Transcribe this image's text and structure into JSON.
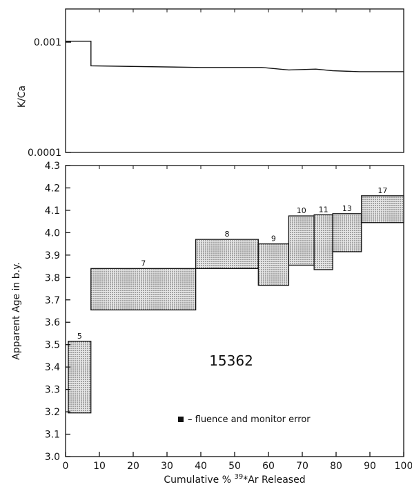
{
  "chart_data": [
    {
      "type": "line",
      "ylabel": "K/Ca",
      "yscale": "log",
      "ylim": [
        0.0001,
        0.002
      ],
      "xlim": [
        0,
        100
      ],
      "y_tick_labels": [
        "0.001",
        "0.0001"
      ],
      "y_ticks": [
        0.001,
        0.0001
      ],
      "step_x": [
        0,
        7.5,
        7.5,
        40,
        58,
        66,
        74,
        79,
        87,
        100
      ],
      "step_y": [
        0.00102,
        0.00102,
        0.00061,
        0.00059,
        0.00059,
        0.00056,
        0.00057,
        0.00055,
        0.00054,
        0.00054
      ]
    },
    {
      "type": "bar",
      "xlabel_prefix": "Cumulative  %  ",
      "xlabel_sup": "39",
      "xlabel_suffix": "*Ar Released",
      "ylabel": "Apparent  Age  in  b.y.",
      "xlim": [
        0,
        100
      ],
      "ylim": [
        3.0,
        4.3
      ],
      "x_ticks": [
        0,
        10,
        20,
        30,
        40,
        50,
        60,
        70,
        80,
        90,
        100
      ],
      "x_tick_labels": [
        "0",
        "10",
        "20",
        "30",
        "40",
        "50",
        "60",
        "70",
        "80",
        "90",
        "100"
      ],
      "y_ticks": [
        3.0,
        3.1,
        3.2,
        3.3,
        3.4,
        3.5,
        3.6,
        3.7,
        3.8,
        3.9,
        4.0,
        4.1,
        4.2,
        4.3
      ],
      "y_tick_labels": [
        "3.0",
        "3.1",
        "3.2",
        "3.3",
        "3.4",
        "3.5",
        "3.6",
        "3.7",
        "3.8",
        "3.9",
        "4.0",
        "4.1",
        "4.2",
        "4.3"
      ],
      "steps": [
        {
          "label": "5",
          "x0": 0.8,
          "x1": 7.5,
          "y0": 3.195,
          "y1": 3.515
        },
        {
          "label": "7",
          "x0": 7.5,
          "x1": 38.5,
          "y0": 3.655,
          "y1": 3.84
        },
        {
          "label": "8",
          "x0": 38.5,
          "x1": 57,
          "y0": 3.84,
          "y1": 3.97
        },
        {
          "label": "9",
          "x0": 57,
          "x1": 66,
          "y0": 3.765,
          "y1": 3.95
        },
        {
          "label": "10",
          "x0": 66,
          "x1": 73.5,
          "y0": 3.855,
          "y1": 4.075
        },
        {
          "label": "11",
          "x0": 73.5,
          "x1": 79,
          "y0": 3.835,
          "y1": 4.08
        },
        {
          "label": "13",
          "x0": 79,
          "x1": 87.5,
          "y0": 3.915,
          "y1": 4.085
        },
        {
          "label": "17",
          "x0": 87.5,
          "x1": 100,
          "y0": 4.045,
          "y1": 4.165
        }
      ],
      "sample_label": "15362",
      "legend": "– fluence and monitor error"
    }
  ]
}
